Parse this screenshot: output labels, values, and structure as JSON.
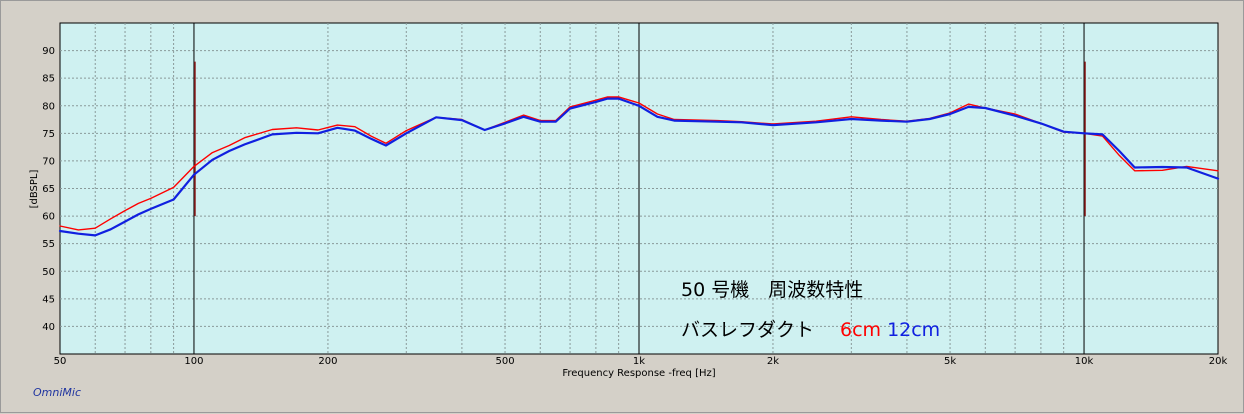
{
  "app": {
    "brand": "OmniMic"
  },
  "annotation": {
    "title": "50 号機　周波数特性",
    "subtitle": "バスレフダクト",
    "legend": [
      {
        "label": "6cm",
        "color": "#ff0000"
      },
      {
        "label": "12cm",
        "color": "#1020e0"
      }
    ]
  },
  "chart_data": {
    "type": "line",
    "xlabel": "Frequency Response -freq [Hz]",
    "ylabel": "[dBSPL]",
    "xscale": "log",
    "xlim": [
      50,
      20000
    ],
    "ylim": [
      35,
      95
    ],
    "grid": true,
    "background": "#cff1f1",
    "y_ticks": [
      40,
      45,
      50,
      55,
      60,
      65,
      70,
      75,
      80,
      85,
      90
    ],
    "x_ticks": [
      {
        "value": 50,
        "label": "50"
      },
      {
        "value": 100,
        "label": "100"
      },
      {
        "value": 200,
        "label": "200"
      },
      {
        "value": 500,
        "label": "500"
      },
      {
        "value": 1000,
        "label": "1k"
      },
      {
        "value": 2000,
        "label": "2k"
      },
      {
        "value": 5000,
        "label": "5k"
      },
      {
        "value": 10000,
        "label": "10k"
      },
      {
        "value": 20000,
        "label": "20k"
      }
    ],
    "series": [
      {
        "name": "6cm",
        "color": "#ff0000",
        "points": [
          [
            50,
            58.2
          ],
          [
            55,
            57.5
          ],
          [
            60,
            57.8
          ],
          [
            65,
            59.5
          ],
          [
            70,
            61.0
          ],
          [
            75,
            62.3
          ],
          [
            80,
            63.2
          ],
          [
            90,
            65.2
          ],
          [
            100,
            69.0
          ],
          [
            110,
            71.5
          ],
          [
            120,
            72.8
          ],
          [
            130,
            74.2
          ],
          [
            150,
            75.7
          ],
          [
            170,
            76.0
          ],
          [
            190,
            75.6
          ],
          [
            210,
            76.5
          ],
          [
            230,
            76.2
          ],
          [
            250,
            74.5
          ],
          [
            270,
            73.2
          ],
          [
            300,
            75.5
          ],
          [
            350,
            77.9
          ],
          [
            400,
            77.5
          ],
          [
            450,
            75.6
          ],
          [
            500,
            77.0
          ],
          [
            550,
            78.3
          ],
          [
            600,
            77.3
          ],
          [
            650,
            77.3
          ],
          [
            700,
            79.8
          ],
          [
            800,
            81.0
          ],
          [
            850,
            81.6
          ],
          [
            900,
            81.6
          ],
          [
            1000,
            80.5
          ],
          [
            1100,
            78.5
          ],
          [
            1200,
            77.5
          ],
          [
            1500,
            77.3
          ],
          [
            1700,
            77.1
          ],
          [
            2000,
            76.7
          ],
          [
            2500,
            77.2
          ],
          [
            3000,
            78.0
          ],
          [
            3500,
            77.5
          ],
          [
            4000,
            77.2
          ],
          [
            4500,
            77.7
          ],
          [
            5000,
            78.7
          ],
          [
            5500,
            80.3
          ],
          [
            6000,
            79.6
          ],
          [
            7000,
            78.5
          ],
          [
            8000,
            76.8
          ],
          [
            9000,
            75.2
          ],
          [
            10000,
            75.0
          ],
          [
            11000,
            74.5
          ],
          [
            12000,
            71.0
          ],
          [
            13000,
            68.2
          ],
          [
            15000,
            68.3
          ],
          [
            17000,
            69.0
          ],
          [
            20000,
            68.2
          ]
        ]
      },
      {
        "name": "12cm",
        "color": "#1020e0",
        "points": [
          [
            50,
            57.3
          ],
          [
            55,
            56.8
          ],
          [
            60,
            56.5
          ],
          [
            65,
            57.6
          ],
          [
            70,
            59.0
          ],
          [
            75,
            60.3
          ],
          [
            80,
            61.3
          ],
          [
            90,
            63.0
          ],
          [
            100,
            67.5
          ],
          [
            110,
            70.2
          ],
          [
            120,
            71.8
          ],
          [
            130,
            73.0
          ],
          [
            150,
            74.8
          ],
          [
            170,
            75.1
          ],
          [
            190,
            75.0
          ],
          [
            210,
            76.0
          ],
          [
            230,
            75.5
          ],
          [
            250,
            74.0
          ],
          [
            270,
            72.8
          ],
          [
            300,
            75.0
          ],
          [
            350,
            77.9
          ],
          [
            400,
            77.4
          ],
          [
            450,
            75.6
          ],
          [
            500,
            76.8
          ],
          [
            550,
            78.0
          ],
          [
            600,
            77.1
          ],
          [
            650,
            77.1
          ],
          [
            700,
            79.5
          ],
          [
            800,
            80.7
          ],
          [
            850,
            81.3
          ],
          [
            900,
            81.3
          ],
          [
            1000,
            80.0
          ],
          [
            1100,
            78.0
          ],
          [
            1200,
            77.3
          ],
          [
            1500,
            77.1
          ],
          [
            1700,
            77.0
          ],
          [
            2000,
            76.5
          ],
          [
            2500,
            77.0
          ],
          [
            3000,
            77.6
          ],
          [
            3500,
            77.3
          ],
          [
            4000,
            77.1
          ],
          [
            4500,
            77.6
          ],
          [
            5000,
            78.5
          ],
          [
            5500,
            79.8
          ],
          [
            6000,
            79.6
          ],
          [
            7000,
            78.2
          ],
          [
            8000,
            76.8
          ],
          [
            9000,
            75.3
          ],
          [
            10000,
            75.0
          ],
          [
            11000,
            74.8
          ],
          [
            12000,
            71.8
          ],
          [
            13000,
            68.8
          ],
          [
            15000,
            68.9
          ],
          [
            17000,
            68.8
          ],
          [
            20000,
            66.8
          ]
        ]
      }
    ]
  }
}
